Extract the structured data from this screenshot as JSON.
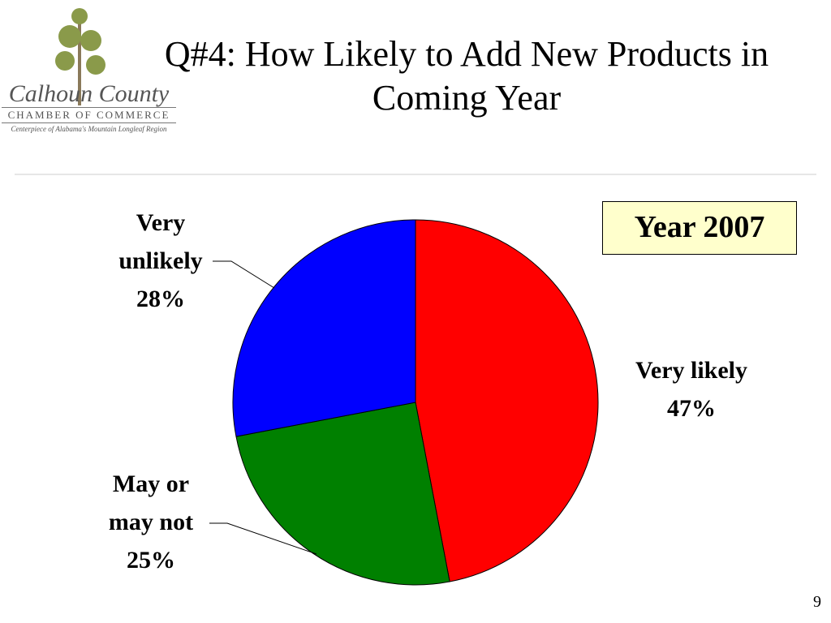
{
  "logo": {
    "name": "Calhoun County",
    "org": "CHAMBER OF COMMERCE",
    "tagline": "Centerpiece of Alabama's Mountain Longleaf Region"
  },
  "page_number": "9",
  "chart_data": {
    "type": "pie",
    "title": "Q#4: How Likely to Add New Products in Coming Year",
    "annotation": "Year 2007",
    "categories": [
      "Very likely",
      "May or may not",
      "Very unlikely"
    ],
    "values": [
      47,
      25,
      28
    ],
    "value_labels": [
      "47%",
      "25%",
      "28%"
    ],
    "colors": [
      "#ff0000",
      "#008000",
      "#0000ff"
    ]
  }
}
